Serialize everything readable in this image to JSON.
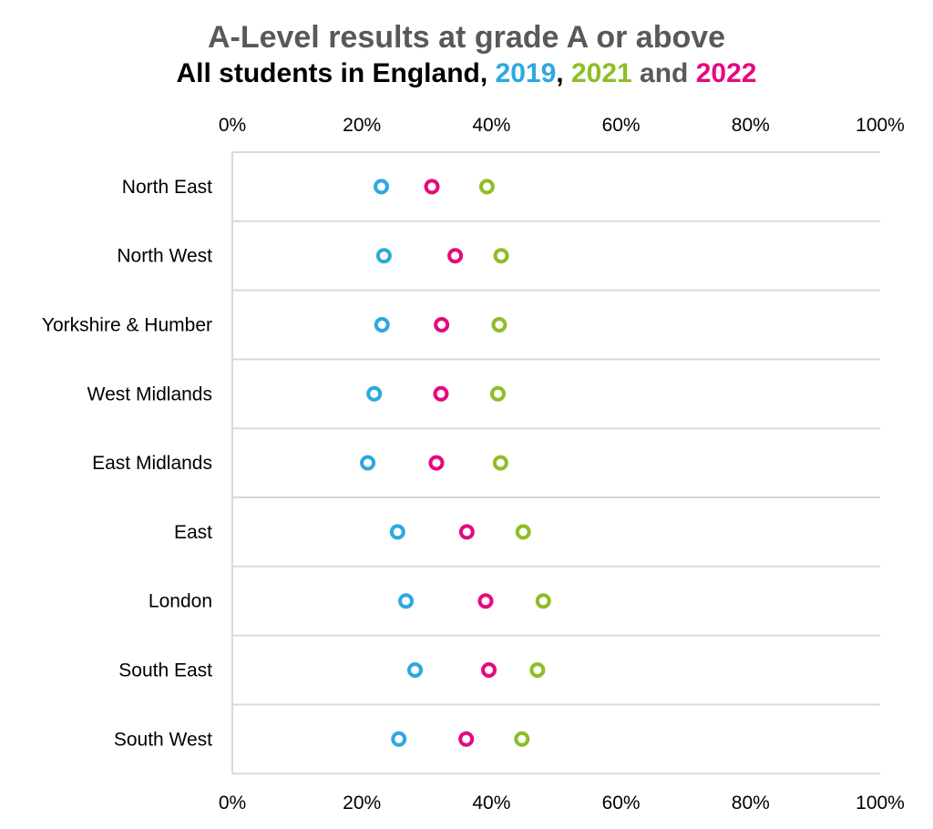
{
  "title": "A-Level results at grade A or above",
  "subtitle": {
    "prefix": "All students in England, ",
    "y2019": "2019",
    "sep1": ", ",
    "y2021": "2021",
    "sep2": " and ",
    "y2022": "2022"
  },
  "colors": {
    "y2019": "#2EA8DF",
    "y2021": "#8DBE26",
    "y2022": "#E5097F",
    "and_text": "#595959",
    "grid": "#d9d9d9"
  },
  "chart_data": {
    "type": "scatter",
    "orientation": "horizontal",
    "categories": [
      "North East",
      "North West",
      "Yorkshire & Humber",
      "West Midlands",
      "East Midlands",
      "East",
      "London",
      "South East",
      "South West"
    ],
    "series": [
      {
        "name": "2019",
        "color": "#2EA8DF",
        "values": [
          23.0,
          23.4,
          23.1,
          21.9,
          20.9,
          25.5,
          26.8,
          28.2,
          25.7
        ]
      },
      {
        "name": "2021",
        "color": "#8DBE26",
        "values": [
          39.3,
          41.5,
          41.2,
          41.0,
          41.4,
          44.9,
          48.0,
          47.1,
          44.7
        ]
      },
      {
        "name": "2022",
        "color": "#E5097F",
        "values": [
          30.8,
          34.4,
          32.3,
          32.2,
          31.5,
          36.2,
          39.1,
          39.6,
          36.1
        ]
      }
    ],
    "xlim": [
      0,
      100
    ],
    "xticks": [
      "0%",
      "20%",
      "40%",
      "60%",
      "80%",
      "100%"
    ],
    "xtick_values": [
      0,
      20,
      40,
      60,
      80,
      100
    ],
    "marker": "hollow-circle",
    "grid": true,
    "legend": "in subtitle colors"
  }
}
